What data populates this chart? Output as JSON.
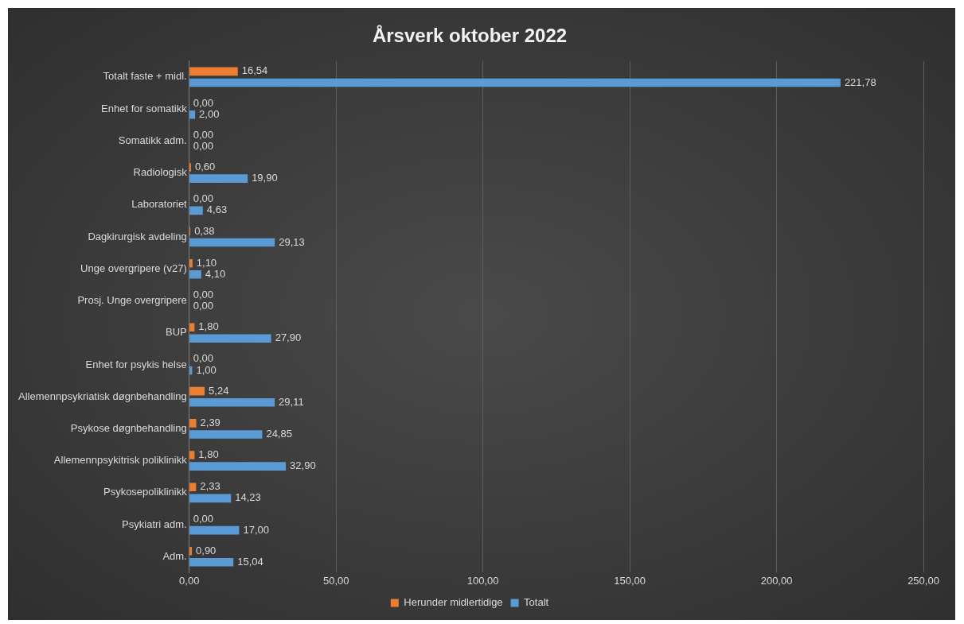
{
  "chart_data": {
    "type": "bar",
    "title": "Årsverk oktober 2022",
    "orientation": "horizontal",
    "categories": [
      "Totalt faste + midl.",
      "Enhet for somatikk",
      "Somatikk adm.",
      "Radiologisk",
      "Laboratoriet",
      "Dagkirurgisk avdeling",
      "Unge overgripere (v27)",
      "Prosj. Unge overgripere",
      "BUP",
      "Enhet for psykis helse",
      "Allemennpsykriatisk døgnbehandling",
      "Psykose døgnbehandling",
      "Allemennpsykitrisk poliklinikk",
      "Psykosepoliklinikk",
      "Psykiatri adm.",
      "Adm."
    ],
    "series": [
      {
        "name": "Herunder midlertidige",
        "color": "#ed7d31",
        "values": [
          16.54,
          0,
          0,
          0.6,
          0,
          0.38,
          1.1,
          0,
          1.8,
          0,
          5.24,
          2.39,
          1.8,
          2.33,
          0,
          0.9
        ],
        "value_labels": [
          "16,54",
          "0,00",
          "0,00",
          "0,60",
          "0,00",
          "0,38",
          "1,10",
          "0,00",
          "1,80",
          "0,00",
          "5,24",
          "2,39",
          "1,80",
          "2,33",
          "0,00",
          "0,90"
        ]
      },
      {
        "name": "Totalt",
        "color": "#5b9bd5",
        "values": [
          221.78,
          2,
          0,
          19.9,
          4.63,
          29.13,
          4.1,
          0,
          27.9,
          1,
          29.11,
          24.85,
          32.9,
          14.23,
          17,
          15.04
        ],
        "value_labels": [
          "221,78",
          "2,00",
          "0,00",
          "19,90",
          "4,63",
          "29,13",
          "4,10",
          "0,00",
          "27,90",
          "1,00",
          "29,11",
          "24,85",
          "32,90",
          "14,23",
          "17,00",
          "15,04"
        ]
      }
    ],
    "xlim": [
      0,
      250
    ],
    "xticks": [
      {
        "value": 0,
        "label": "0,00"
      },
      {
        "value": 50,
        "label": "50,00"
      },
      {
        "value": 100,
        "label": "100,00"
      },
      {
        "value": 150,
        "label": "150,00"
      },
      {
        "value": 200,
        "label": "200,00"
      },
      {
        "value": 250,
        "label": "250,00"
      }
    ],
    "grid": "x",
    "legend": "bottom"
  }
}
